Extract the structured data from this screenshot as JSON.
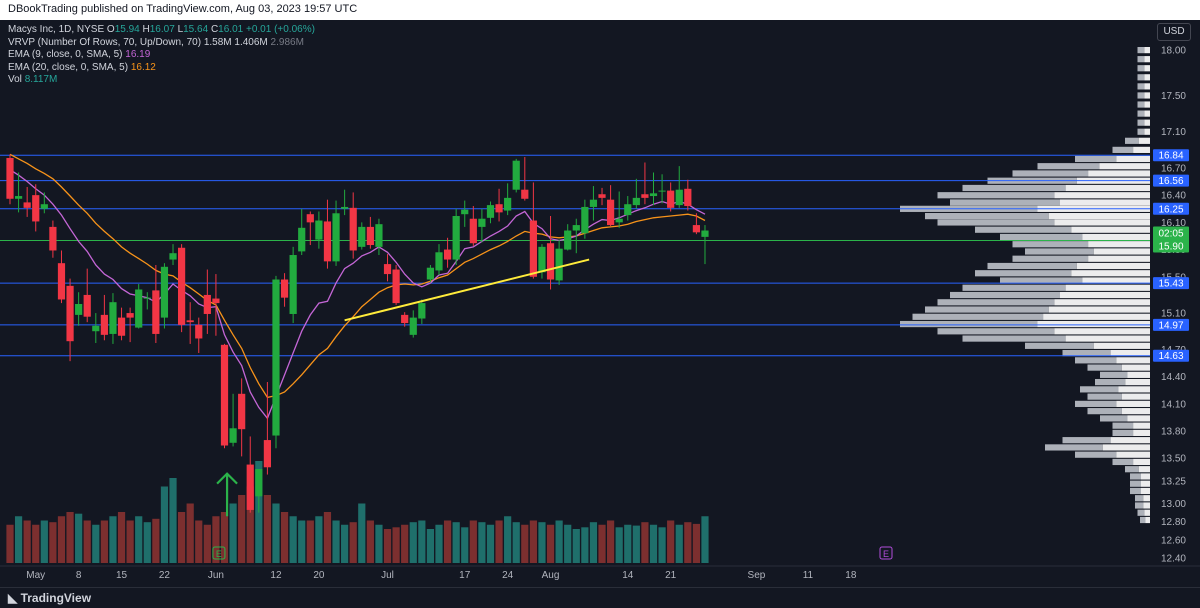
{
  "header": {
    "publisher_line": "DBookTrading published on TradingView.com, Aug 03, 2023 19:57 UTC"
  },
  "footer": {
    "logo_text": "TradingView"
  },
  "legend": {
    "symbol_line": {
      "name": "Macys Inc, 1D, NYSE",
      "o_label": "O",
      "o_value": "15.94",
      "h_label": "H",
      "h_value": "16.07",
      "l_label": "L",
      "l_value": "15.64",
      "c_label": "C",
      "c_value": "16.01",
      "change": "+0.01 (+0.06%)"
    },
    "vrvp_line": {
      "label": "VRVP (Number Of Rows, 70, Up/Down, 70)",
      "v1": "1.58M",
      "v2": "1.406M",
      "v3": "2.986M"
    },
    "ema9_line": {
      "label": "EMA (9, close, 0, SMA, 5)",
      "value": "16.19"
    },
    "ema20_line": {
      "label": "EMA (20, close, 0, SMA, 5)",
      "value": "16.12"
    },
    "vol_line": {
      "label": "Vol",
      "value": "8.117M"
    }
  },
  "currency": "USD",
  "chart_data": {
    "type": "candlestick",
    "colors": {
      "background": "#131722",
      "up": "#26a69a",
      "up_candle": "#22ab3f",
      "down": "#f23645",
      "ema9": "#c466d6",
      "ema20": "#f7931a",
      "trendline": "#ffeb3b",
      "level_line": "#2962ff",
      "current_line": "#2bb34a",
      "volume_up": "#1f6f6b",
      "volume_down": "#7c2f2f"
    },
    "y_axis": {
      "ylim": [
        12.4,
        18.2
      ],
      "ticks": [
        "18.00",
        "17.50",
        "17.10",
        "16.70",
        "16.40",
        "16.10",
        "15.80",
        "15.50",
        "15.10",
        "14.70",
        "14.40",
        "14.10",
        "13.80",
        "13.50",
        "13.25",
        "13.00",
        "12.80",
        "12.60",
        "12.40"
      ]
    },
    "x_axis": {
      "ticks": [
        {
          "label": "May",
          "index": 3
        },
        {
          "label": "8",
          "index": 8
        },
        {
          "label": "15",
          "index": 13
        },
        {
          "label": "22",
          "index": 18
        },
        {
          "label": "Jun",
          "index": 24
        },
        {
          "label": "12",
          "index": 31
        },
        {
          "label": "20",
          "index": 36
        },
        {
          "label": "Jul",
          "index": 44
        },
        {
          "label": "17",
          "index": 53
        },
        {
          "label": "24",
          "index": 58
        },
        {
          "label": "Aug",
          "index": 63
        },
        {
          "label": "14",
          "index": 72
        },
        {
          "label": "21",
          "index": 77
        },
        {
          "label": "Sep",
          "index": 87
        },
        {
          "label": "11",
          "index": 93
        },
        {
          "label": "18",
          "index": 98
        }
      ]
    },
    "horizontal_levels": [
      16.84,
      16.56,
      16.25,
      15.43,
      14.97,
      14.63
    ],
    "level_labels": [
      "16.84",
      "16.56",
      "16.25",
      "15.43",
      "14.97",
      "14.63"
    ],
    "current_price": 15.9,
    "current_labels": {
      "countdown": "02:05",
      "price": "15.90"
    },
    "trendline": {
      "from": [
        39,
        15.02
      ],
      "to": [
        67.5,
        15.69
      ]
    },
    "candles": [
      [
        16.81,
        16.85,
        16.3,
        16.36
      ],
      [
        16.36,
        16.65,
        16.21,
        16.39
      ],
      [
        16.32,
        16.49,
        16.16,
        16.26
      ],
      [
        16.4,
        16.52,
        16.0,
        16.11
      ],
      [
        16.25,
        16.43,
        16.2,
        16.3
      ],
      [
        16.05,
        16.12,
        15.71,
        15.79
      ],
      [
        15.65,
        15.79,
        15.21,
        15.25
      ],
      [
        15.4,
        15.48,
        14.57,
        14.79
      ],
      [
        15.08,
        15.33,
        14.96,
        15.2
      ],
      [
        15.3,
        15.59,
        15.0,
        15.06
      ],
      [
        14.9,
        15.1,
        14.77,
        14.96
      ],
      [
        15.08,
        15.3,
        14.8,
        14.86
      ],
      [
        14.87,
        15.32,
        14.76,
        15.22
      ],
      [
        15.05,
        15.16,
        14.8,
        14.85
      ],
      [
        15.1,
        15.16,
        14.78,
        15.05
      ],
      [
        14.94,
        15.42,
        14.93,
        15.36
      ],
      [
        15.27,
        15.33,
        15.14,
        15.27
      ],
      [
        15.35,
        15.63,
        14.77,
        14.87
      ],
      [
        15.05,
        15.65,
        14.93,
        15.61
      ],
      [
        15.69,
        15.86,
        15.63,
        15.76
      ],
      [
        15.82,
        15.86,
        14.89,
        14.97
      ],
      [
        15.02,
        15.22,
        14.76,
        15.0
      ],
      [
        14.97,
        15.05,
        14.66,
        14.82
      ],
      [
        15.3,
        15.58,
        14.87,
        15.09
      ],
      [
        15.26,
        15.53,
        14.85,
        15.21
      ],
      [
        14.75,
        14.76,
        13.61,
        13.64
      ],
      [
        13.67,
        14.21,
        13.63,
        13.83
      ],
      [
        14.21,
        14.38,
        13.52,
        13.82
      ],
      [
        13.43,
        13.74,
        12.9,
        12.93
      ],
      [
        13.08,
        13.38,
        12.9,
        13.38
      ],
      [
        13.7,
        14.34,
        13.32,
        13.4
      ],
      [
        13.75,
        15.51,
        13.61,
        15.47
      ],
      [
        15.47,
        15.54,
        15.17,
        15.27
      ],
      [
        15.09,
        15.83,
        14.99,
        15.74
      ],
      [
        15.78,
        16.25,
        15.74,
        16.04
      ],
      [
        16.19,
        16.22,
        15.85,
        16.1
      ],
      [
        15.91,
        16.22,
        15.81,
        16.12
      ],
      [
        16.11,
        16.35,
        15.59,
        15.67
      ],
      [
        15.67,
        16.34,
        15.62,
        16.2
      ],
      [
        16.25,
        16.46,
        16.18,
        16.27
      ],
      [
        16.26,
        16.43,
        15.7,
        15.79
      ],
      [
        15.83,
        16.1,
        15.8,
        16.05
      ],
      [
        16.05,
        16.16,
        15.81,
        15.85
      ],
      [
        15.83,
        16.14,
        15.74,
        16.08
      ],
      [
        15.64,
        15.75,
        15.45,
        15.53
      ],
      [
        15.58,
        15.63,
        15.19,
        15.21
      ],
      [
        15.08,
        15.11,
        14.95,
        14.99
      ],
      [
        14.86,
        15.13,
        14.83,
        15.05
      ],
      [
        15.04,
        15.25,
        14.98,
        15.21
      ],
      [
        15.47,
        15.63,
        15.44,
        15.6
      ],
      [
        15.57,
        15.86,
        15.52,
        15.77
      ],
      [
        15.8,
        15.93,
        15.6,
        15.69
      ],
      [
        15.69,
        16.25,
        15.63,
        16.17
      ],
      [
        16.19,
        16.34,
        16.05,
        16.24
      ],
      [
        16.14,
        16.28,
        15.84,
        15.87
      ],
      [
        16.05,
        16.25,
        15.88,
        16.14
      ],
      [
        16.15,
        16.33,
        16.09,
        16.29
      ],
      [
        16.3,
        16.47,
        16.11,
        16.21
      ],
      [
        16.23,
        16.53,
        16.18,
        16.37
      ],
      [
        16.46,
        16.8,
        16.43,
        16.78
      ],
      [
        16.46,
        16.82,
        16.34,
        16.36
      ],
      [
        16.12,
        16.54,
        15.48,
        15.5
      ],
      [
        15.55,
        15.86,
        15.48,
        15.83
      ],
      [
        15.87,
        16.17,
        15.36,
        15.47
      ],
      [
        15.46,
        15.91,
        15.41,
        15.81
      ],
      [
        15.8,
        16.08,
        15.79,
        16.01
      ],
      [
        16.01,
        16.14,
        15.76,
        16.07
      ],
      [
        15.98,
        16.35,
        15.92,
        16.27
      ],
      [
        16.27,
        16.5,
        16.12,
        16.35
      ],
      [
        16.41,
        16.48,
        16.29,
        16.37
      ],
      [
        16.35,
        16.51,
        16.06,
        16.07
      ],
      [
        16.1,
        16.44,
        16.04,
        16.14
      ],
      [
        16.18,
        16.39,
        16.12,
        16.3
      ],
      [
        16.29,
        16.58,
        16.25,
        16.37
      ],
      [
        16.41,
        16.76,
        16.3,
        16.37
      ],
      [
        16.39,
        16.65,
        16.29,
        16.42
      ],
      [
        16.44,
        16.63,
        16.31,
        16.45
      ],
      [
        16.45,
        16.54,
        16.22,
        16.26
      ],
      [
        16.29,
        16.72,
        16.26,
        16.46
      ],
      [
        16.47,
        16.57,
        16.23,
        16.28
      ],
      [
        16.07,
        16.2,
        15.97,
        15.99
      ],
      [
        15.94,
        16.07,
        15.64,
        16.01
      ]
    ],
    "volume": [
      0.45,
      0.55,
      0.5,
      0.45,
      0.5,
      0.48,
      0.55,
      0.6,
      0.58,
      0.5,
      0.45,
      0.5,
      0.55,
      0.6,
      0.5,
      0.55,
      0.48,
      0.52,
      0.9,
      1.0,
      0.6,
      0.7,
      0.5,
      0.45,
      0.55,
      0.6,
      0.7,
      0.8,
      0.9,
      1.2,
      0.8,
      0.7,
      0.6,
      0.55,
      0.5,
      0.5,
      0.55,
      0.6,
      0.5,
      0.45,
      0.48,
      0.7,
      0.5,
      0.45,
      0.4,
      0.42,
      0.45,
      0.48,
      0.5,
      0.4,
      0.45,
      0.5,
      0.48,
      0.42,
      0.5,
      0.48,
      0.45,
      0.5,
      0.55,
      0.48,
      0.45,
      0.5,
      0.48,
      0.45,
      0.5,
      0.45,
      0.4,
      0.42,
      0.48,
      0.45,
      0.5,
      0.42,
      0.45,
      0.44,
      0.48,
      0.45,
      0.42,
      0.5,
      0.45,
      0.48,
      0.46,
      0.55
    ],
    "ema9": [
      16.68,
      16.62,
      16.55,
      16.47,
      16.4,
      16.3,
      16.18,
      16.03,
      15.89,
      15.78,
      15.63,
      15.53,
      15.47,
      15.37,
      15.31,
      15.29,
      15.27,
      15.22,
      15.31,
      15.42,
      15.35,
      15.29,
      15.2,
      15.16,
      15.17,
      14.86,
      14.67,
      14.52,
      14.23,
      14.06,
      13.94,
      14.18,
      14.42,
      14.66,
      14.9,
      15.08,
      15.21,
      15.23,
      15.43,
      15.59,
      15.65,
      15.73,
      15.77,
      15.83,
      15.77,
      15.66,
      15.53,
      15.43,
      15.39,
      15.43,
      15.52,
      15.54,
      15.67,
      15.81,
      15.83,
      15.89,
      15.95,
      16.0,
      16.06,
      16.17,
      16.22,
      16.09,
      16.03,
      15.92,
      15.9,
      15.92,
      15.95,
      16.02,
      16.08,
      16.13,
      16.12,
      16.15,
      16.19,
      16.23,
      16.26,
      16.3,
      16.33,
      16.3,
      16.33,
      16.3,
      16.24,
      16.19
    ],
    "ema20": [
      16.85,
      16.8,
      16.75,
      16.69,
      16.64,
      16.58,
      16.49,
      16.39,
      16.29,
      16.2,
      16.09,
      16.0,
      15.92,
      15.83,
      15.76,
      15.7,
      15.64,
      15.57,
      15.53,
      15.51,
      15.44,
      15.38,
      15.31,
      15.24,
      15.19,
      15.02,
      14.86,
      14.71,
      14.5,
      14.32,
      14.17,
      14.19,
      14.23,
      14.32,
      14.42,
      14.53,
      14.64,
      14.71,
      14.84,
      14.96,
      15.06,
      15.17,
      15.25,
      15.33,
      15.38,
      15.41,
      15.42,
      15.41,
      15.42,
      15.45,
      15.49,
      15.52,
      15.59,
      15.66,
      15.7,
      15.75,
      15.8,
      15.84,
      15.89,
      15.95,
      16.0,
      15.98,
      15.97,
      15.94,
      15.93,
      15.94,
      15.95,
      15.98,
      16.01,
      16.04,
      16.05,
      16.06,
      16.08,
      16.11,
      16.13,
      16.15,
      16.16,
      16.17,
      16.18,
      16.19,
      16.17,
      16.12
    ],
    "volume_profile": {
      "bins": [
        [
          18.0,
          0.05
        ],
        [
          17.9,
          0.05
        ],
        [
          17.8,
          0.05
        ],
        [
          17.7,
          0.05
        ],
        [
          17.6,
          0.05
        ],
        [
          17.5,
          0.05
        ],
        [
          17.4,
          0.05
        ],
        [
          17.3,
          0.05
        ],
        [
          17.2,
          0.05
        ],
        [
          17.1,
          0.05
        ],
        [
          17.0,
          0.1
        ],
        [
          16.9,
          0.15
        ],
        [
          16.8,
          0.3
        ],
        [
          16.72,
          0.45
        ],
        [
          16.64,
          0.55
        ],
        [
          16.56,
          0.65
        ],
        [
          16.48,
          0.75
        ],
        [
          16.4,
          0.85
        ],
        [
          16.32,
          0.8
        ],
        [
          16.25,
          1.0
        ],
        [
          16.17,
          0.9
        ],
        [
          16.1,
          0.85
        ],
        [
          16.02,
          0.7
        ],
        [
          15.94,
          0.6
        ],
        [
          15.86,
          0.55
        ],
        [
          15.78,
          0.5
        ],
        [
          15.7,
          0.55
        ],
        [
          15.62,
          0.65
        ],
        [
          15.54,
          0.7
        ],
        [
          15.46,
          0.6
        ],
        [
          15.38,
          0.75
        ],
        [
          15.3,
          0.8
        ],
        [
          15.22,
          0.85
        ],
        [
          15.14,
          0.9
        ],
        [
          15.06,
          0.95
        ],
        [
          14.98,
          1.0
        ],
        [
          14.9,
          0.85
        ],
        [
          14.82,
          0.75
        ],
        [
          14.74,
          0.5
        ],
        [
          14.66,
          0.35
        ],
        [
          14.58,
          0.3
        ],
        [
          14.5,
          0.25
        ],
        [
          14.42,
          0.2
        ],
        [
          14.34,
          0.22
        ],
        [
          14.26,
          0.28
        ],
        [
          14.18,
          0.25
        ],
        [
          14.1,
          0.3
        ],
        [
          14.02,
          0.25
        ],
        [
          13.94,
          0.2
        ],
        [
          13.86,
          0.15
        ],
        [
          13.78,
          0.15
        ],
        [
          13.7,
          0.35
        ],
        [
          13.62,
          0.42
        ],
        [
          13.54,
          0.3
        ],
        [
          13.46,
          0.15
        ],
        [
          13.38,
          0.1
        ],
        [
          13.3,
          0.08
        ],
        [
          13.22,
          0.08
        ],
        [
          13.14,
          0.08
        ],
        [
          13.06,
          0.06
        ],
        [
          12.98,
          0.06
        ],
        [
          12.9,
          0.05
        ],
        [
          12.82,
          0.04
        ]
      ]
    },
    "earnings_markers": [
      {
        "index": 24,
        "label": "E"
      },
      {
        "index": 75,
        "label": "E"
      }
    ],
    "arrow_annotation": {
      "index": 25.3,
      "from": 12.86,
      "to": 13.33
    }
  }
}
